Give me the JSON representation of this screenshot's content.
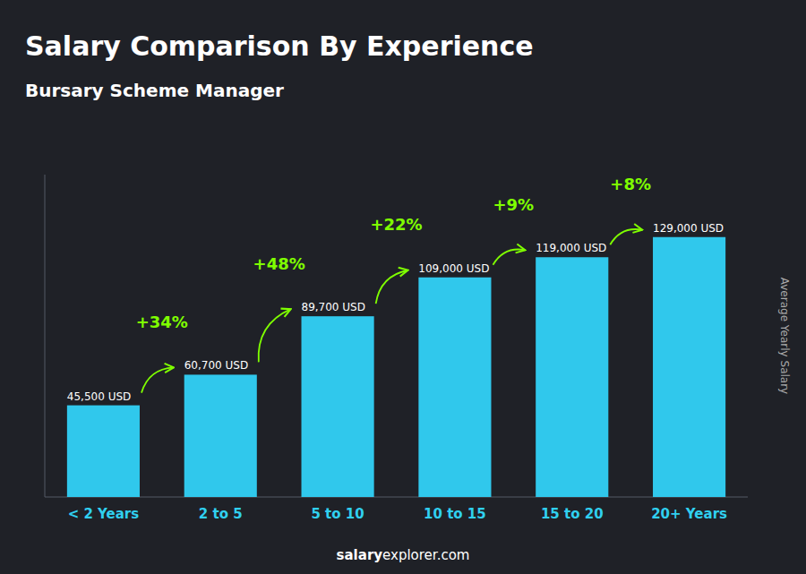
{
  "chart_data": {
    "type": "bar",
    "title": "Salary Comparison By Experience",
    "subtitle": "Bursary Scheme Manager",
    "ylabel": "Average Yearly Salary",
    "categories": [
      "< 2 Years",
      "2 to 5",
      "5 to 10",
      "10 to 15",
      "15 to 20",
      "20+ Years"
    ],
    "values": [
      45500,
      60700,
      89700,
      109000,
      119000,
      129000
    ],
    "value_labels": [
      "45,500 USD",
      "60,700 USD",
      "89,700 USD",
      "109,000 USD",
      "119,000 USD",
      "129,000 USD"
    ],
    "data_labels": true,
    "annotations": [
      "+34%",
      "+48%",
      "+22%",
      "+9%",
      "+8%"
    ],
    "watermark": [
      "salary",
      "explorer.com"
    ],
    "color": "#30c8ec",
    "ylim": [
      0,
      160000
    ],
    "tick_labels": "x",
    "grid": false
  }
}
